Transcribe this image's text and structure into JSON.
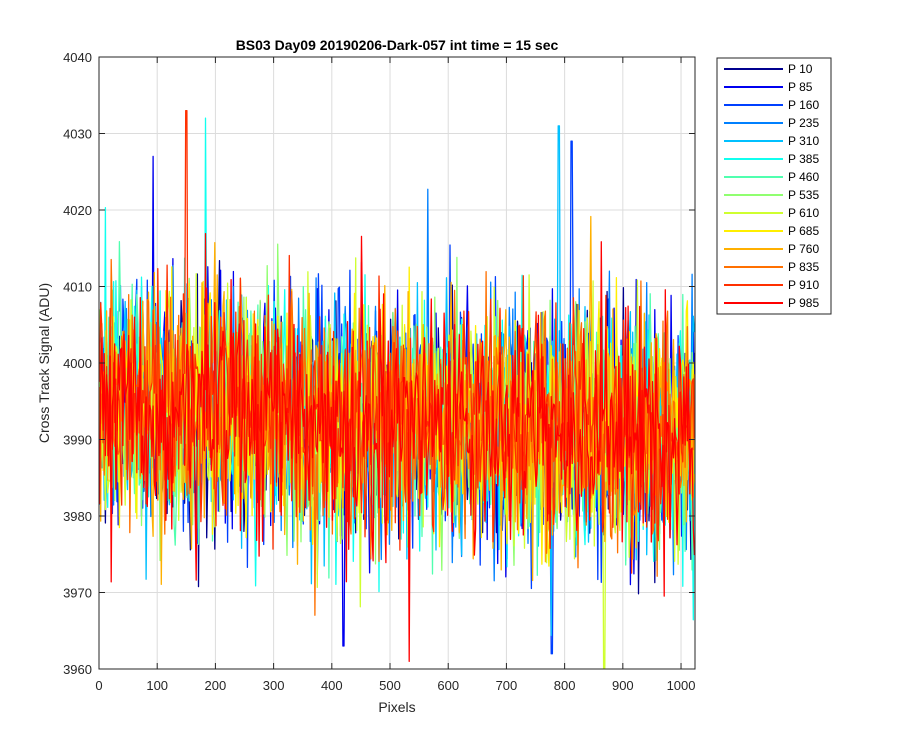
{
  "chart_data": {
    "type": "line",
    "title": "BS03 Day09 20190206-Dark-057 int time = 15 sec",
    "xlabel": "Pixels",
    "ylabel": "Cross Track Signal (ADU)",
    "xlim": [
      0,
      1024
    ],
    "ylim": [
      3960,
      4040
    ],
    "xticks": [
      0,
      100,
      200,
      300,
      400,
      500,
      600,
      700,
      800,
      900,
      1000
    ],
    "yticks": [
      3960,
      3970,
      3980,
      3990,
      4000,
      4010,
      4020,
      4030,
      4040
    ],
    "grid": true,
    "legend_position": "outside-top-right",
    "series": [
      {
        "name": "P 10",
        "color": "#00008f"
      },
      {
        "name": "P 85",
        "color": "#0000ef"
      },
      {
        "name": "P 160",
        "color": "#0040ff"
      },
      {
        "name": "P 235",
        "color": "#0080ff"
      },
      {
        "name": "P 310",
        "color": "#00c0ff"
      },
      {
        "name": "P 385",
        "color": "#10ffef"
      },
      {
        "name": "P 460",
        "color": "#50ffaf"
      },
      {
        "name": "P 535",
        "color": "#90ff70"
      },
      {
        "name": "P 610",
        "color": "#cfff30"
      },
      {
        "name": "P 685",
        "color": "#ffef00"
      },
      {
        "name": "P 760",
        "color": "#ffb000"
      },
      {
        "name": "P 835",
        "color": "#ff7000"
      },
      {
        "name": "P 910",
        "color": "#ff3000"
      },
      {
        "name": "P 985",
        "color": "#ff0000"
      }
    ],
    "signal_profile": {
      "mean_start": 3995,
      "mean_end": 3990,
      "noise_sigma": 7.5
    },
    "annotated_extremes": [
      {
        "series": "P 910",
        "x": 150,
        "y": 4033
      },
      {
        "series": "P 385",
        "x": 183,
        "y": 4032
      },
      {
        "series": "P 310",
        "x": 790,
        "y": 4031
      },
      {
        "series": "P 160",
        "x": 812,
        "y": 4029
      },
      {
        "series": "P 85",
        "x": 93,
        "y": 4027
      },
      {
        "series": "P 985",
        "x": 533,
        "y": 3961
      },
      {
        "series": "P 610",
        "x": 868,
        "y": 3960
      },
      {
        "series": "P 160",
        "x": 778,
        "y": 3962
      },
      {
        "series": "P 85",
        "x": 420,
        "y": 3963
      }
    ]
  }
}
